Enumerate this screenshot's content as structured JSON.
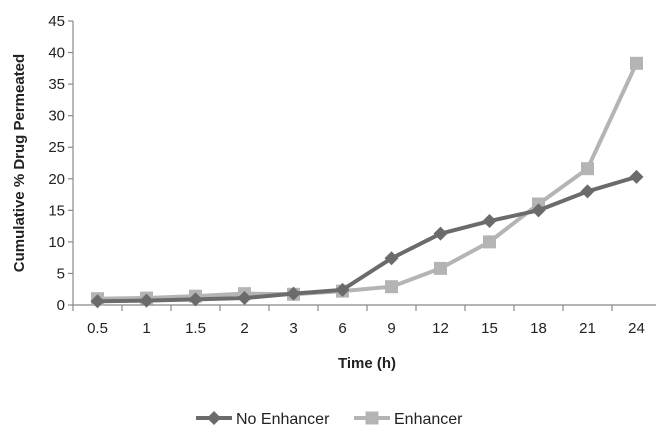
{
  "chart_data": {
    "type": "line",
    "title": "",
    "xlabel": "Time (h)",
    "ylabel": "Cumulative % Drug Permeated",
    "categories": [
      "0.5",
      "1",
      "1.5",
      "2",
      "3",
      "6",
      "9",
      "12",
      "15",
      "18",
      "21",
      "24"
    ],
    "ylim": [
      0,
      45
    ],
    "yticks": [
      0,
      5,
      10,
      15,
      20,
      25,
      30,
      35,
      40,
      45
    ],
    "grid": false,
    "legend_position": "bottom",
    "series": [
      {
        "name": "No Enhancer",
        "marker": "diamond",
        "color": "#6b6b6b",
        "values": [
          0.6,
          0.7,
          0.9,
          1.1,
          1.8,
          2.4,
          7.4,
          11.3,
          13.3,
          15.0,
          18.0,
          20.3
        ]
      },
      {
        "name": "Enhancer",
        "marker": "square",
        "color": "#b4b4b4",
        "values": [
          1.0,
          1.1,
          1.4,
          1.8,
          1.7,
          2.2,
          2.9,
          5.8,
          10.0,
          16.0,
          21.6,
          38.3
        ]
      }
    ]
  }
}
